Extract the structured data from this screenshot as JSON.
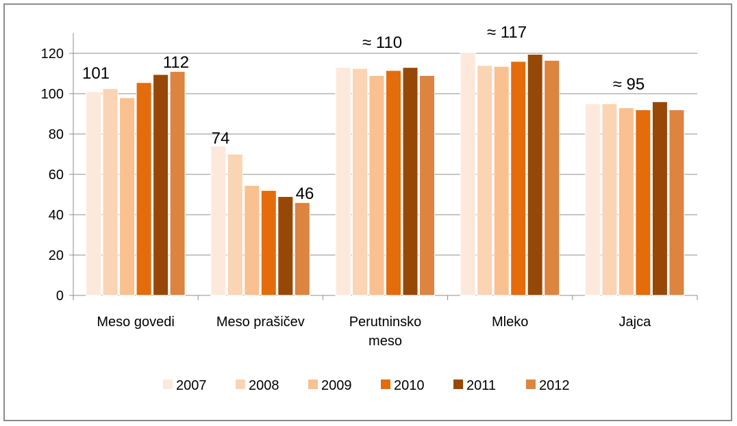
{
  "chart_data": {
    "type": "bar",
    "categories": [
      "Meso govedi",
      "Meso prašičev",
      "Perutninsko meso",
      "Mleko",
      "Jajca"
    ],
    "series": [
      {
        "name": "2007",
        "color": "#fde9dc",
        "values": [
          101,
          74,
          113,
          120.5,
          95
        ]
      },
      {
        "name": "2008",
        "color": "#fbd4b4",
        "values": [
          102.5,
          70,
          112.5,
          114,
          95
        ]
      },
      {
        "name": "2009",
        "color": "#fac08f",
        "values": [
          98,
          54.5,
          109,
          113.5,
          93
        ]
      },
      {
        "name": "2010",
        "color": "#e46c0a",
        "values": [
          105.5,
          52,
          111.5,
          116,
          92
        ]
      },
      {
        "name": "2011",
        "color": "#974806",
        "values": [
          109.5,
          49,
          113,
          119.5,
          96
        ]
      },
      {
        "name": "2012",
        "color": "#dd8440",
        "values": [
          111,
          46,
          109,
          116.5,
          92
        ]
      }
    ],
    "annotations": [
      "101",
      "112",
      "74",
      "46",
      "≈ 110",
      "≈ 117",
      "≈ 95"
    ],
    "ylim": [
      0,
      130
    ],
    "yticks": [
      0,
      20,
      40,
      60,
      80,
      100,
      120
    ],
    "grid": true,
    "legend": "bottom"
  }
}
